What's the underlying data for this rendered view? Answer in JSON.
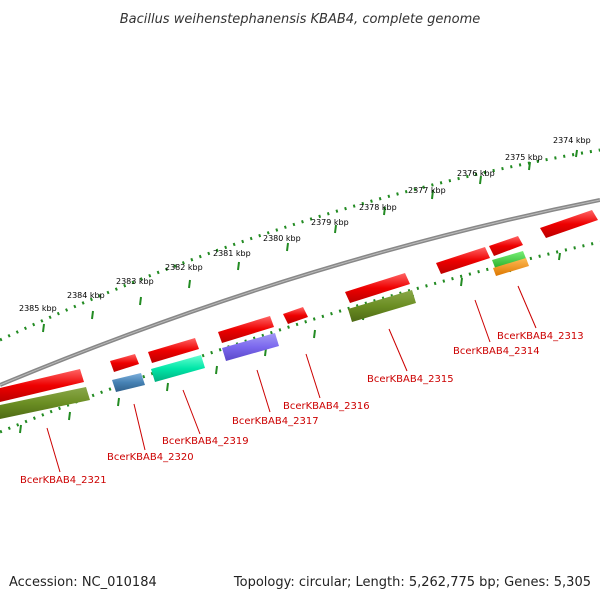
{
  "title": "Bacillus weihenstephanensis KBAB4, complete genome",
  "footer": {
    "accession": "Accession: NC_010184",
    "summary": "Topology: circular; Length: 5,262,775 bp; Genes: 5,305"
  },
  "ticks": [
    "2374 kbp",
    "2375 kbp",
    "2376 kbp",
    "2377 kbp",
    "2378 kbp",
    "2379 kbp",
    "2380 kbp",
    "2381 kbp",
    "2382 kbp",
    "2383 kbp",
    "2384 kbp",
    "2385 kbp"
  ],
  "genes": [
    "BcerKBAB4_2313",
    "BcerKBAB4_2314",
    "BcerKBAB4_2315",
    "BcerKBAB4_2316",
    "BcerKBAB4_2317",
    "BcerKBAB4_2319",
    "BcerKBAB4_2320",
    "BcerKBAB4_2321"
  ],
  "colors": {
    "gene_red": "#ee1111",
    "olive": "#6b8e23",
    "teal": "#00e6a8",
    "purple": "#7b68ee",
    "steelblue": "#4682b4",
    "green": "#33cc33",
    "orange": "#ff9900",
    "backbone": "#888888",
    "tick_green": "#228b22"
  }
}
